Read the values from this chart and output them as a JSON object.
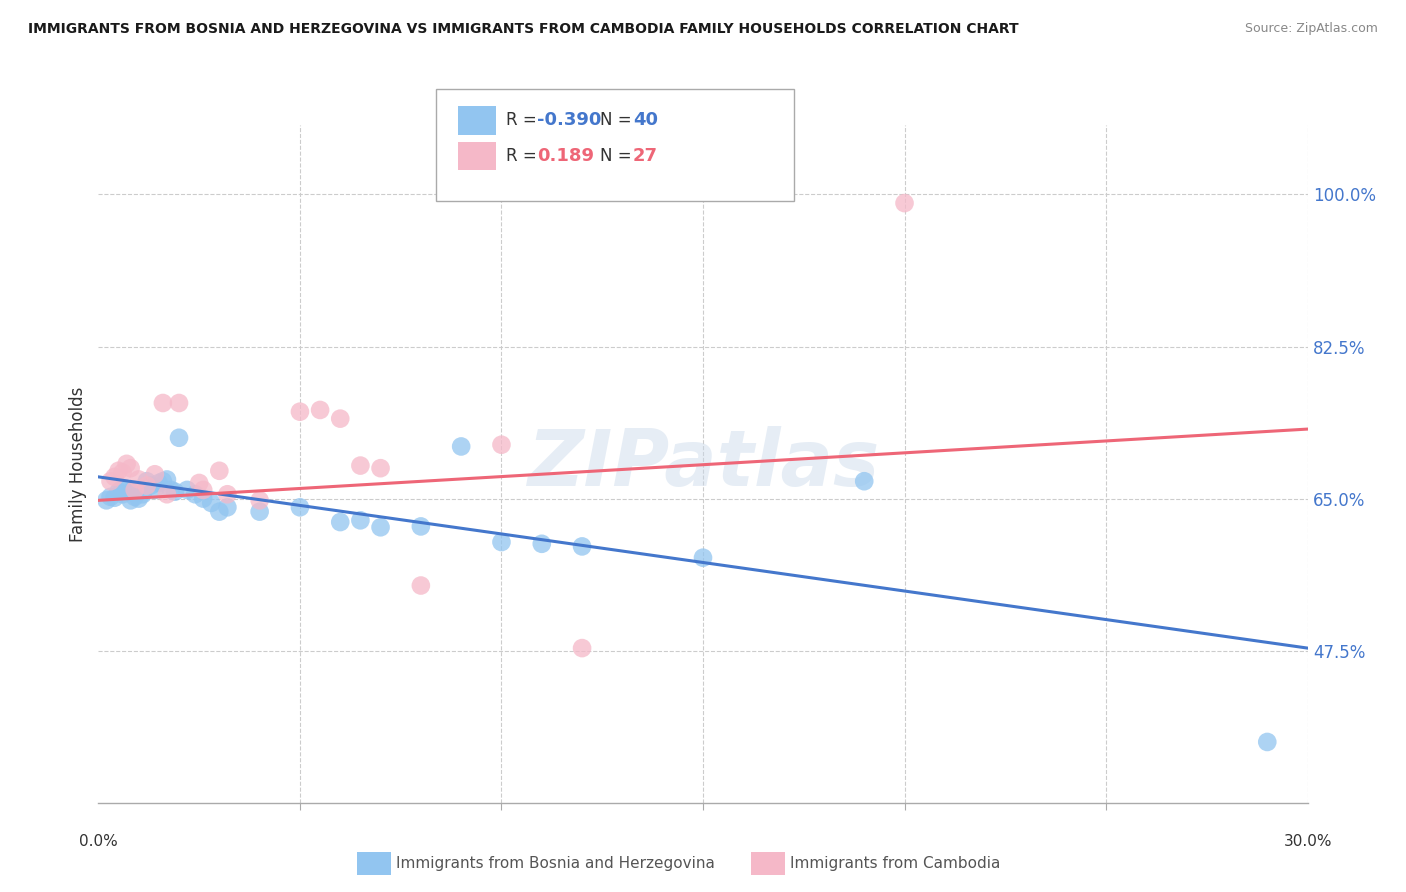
{
  "title": "IMMIGRANTS FROM BOSNIA AND HERZEGOVINA VS IMMIGRANTS FROM CAMBODIA FAMILY HOUSEHOLDS CORRELATION CHART",
  "source": "Source: ZipAtlas.com",
  "ylabel": "Family Households",
  "ytick_labels": [
    "100.0%",
    "82.5%",
    "65.0%",
    "47.5%"
  ],
  "ytick_values": [
    1.0,
    0.825,
    0.65,
    0.475
  ],
  "xmin": 0.0,
  "xmax": 0.3,
  "ymin": 0.3,
  "ymax": 1.08,
  "blue_label": "Immigrants from Bosnia and Herzegovina",
  "pink_label": "Immigrants from Cambodia",
  "blue_R": -0.39,
  "blue_N": 40,
  "pink_R": 0.189,
  "pink_N": 27,
  "blue_color": "#92C5F0",
  "pink_color": "#F5B8C8",
  "blue_line_color": "#4477CC",
  "pink_line_color": "#EE6677",
  "watermark": "ZIPatlas",
  "blue_line": [
    [
      0.0,
      0.675
    ],
    [
      0.3,
      0.478
    ]
  ],
  "pink_line": [
    [
      0.0,
      0.648
    ],
    [
      0.3,
      0.73
    ]
  ],
  "blue_points": [
    [
      0.002,
      0.648
    ],
    [
      0.003,
      0.652
    ],
    [
      0.004,
      0.651
    ],
    [
      0.005,
      0.658
    ],
    [
      0.006,
      0.655
    ],
    [
      0.006,
      0.662
    ],
    [
      0.007,
      0.66
    ],
    [
      0.008,
      0.658
    ],
    [
      0.008,
      0.648
    ],
    [
      0.009,
      0.652
    ],
    [
      0.01,
      0.65
    ],
    [
      0.011,
      0.655
    ],
    [
      0.012,
      0.67
    ],
    [
      0.013,
      0.665
    ],
    [
      0.014,
      0.66
    ],
    [
      0.015,
      0.668
    ],
    [
      0.016,
      0.67
    ],
    [
      0.017,
      0.672
    ],
    [
      0.018,
      0.66
    ],
    [
      0.019,
      0.658
    ],
    [
      0.02,
      0.72
    ],
    [
      0.022,
      0.66
    ],
    [
      0.024,
      0.655
    ],
    [
      0.026,
      0.65
    ],
    [
      0.028,
      0.645
    ],
    [
      0.03,
      0.635
    ],
    [
      0.032,
      0.64
    ],
    [
      0.04,
      0.635
    ],
    [
      0.05,
      0.64
    ],
    [
      0.06,
      0.623
    ],
    [
      0.065,
      0.625
    ],
    [
      0.07,
      0.617
    ],
    [
      0.08,
      0.618
    ],
    [
      0.09,
      0.71
    ],
    [
      0.1,
      0.6
    ],
    [
      0.11,
      0.598
    ],
    [
      0.12,
      0.595
    ],
    [
      0.15,
      0.582
    ],
    [
      0.19,
      0.67
    ],
    [
      0.29,
      0.37
    ]
  ],
  "pink_points": [
    [
      0.003,
      0.67
    ],
    [
      0.004,
      0.675
    ],
    [
      0.005,
      0.682
    ],
    [
      0.006,
      0.68
    ],
    [
      0.007,
      0.69
    ],
    [
      0.008,
      0.685
    ],
    [
      0.009,
      0.66
    ],
    [
      0.01,
      0.672
    ],
    [
      0.012,
      0.665
    ],
    [
      0.014,
      0.678
    ],
    [
      0.016,
      0.76
    ],
    [
      0.017,
      0.655
    ],
    [
      0.02,
      0.76
    ],
    [
      0.025,
      0.668
    ],
    [
      0.026,
      0.66
    ],
    [
      0.03,
      0.682
    ],
    [
      0.032,
      0.655
    ],
    [
      0.04,
      0.648
    ],
    [
      0.05,
      0.75
    ],
    [
      0.055,
      0.752
    ],
    [
      0.06,
      0.742
    ],
    [
      0.065,
      0.688
    ],
    [
      0.07,
      0.685
    ],
    [
      0.08,
      0.55
    ],
    [
      0.1,
      0.712
    ],
    [
      0.12,
      0.478
    ],
    [
      0.2,
      0.99
    ]
  ]
}
